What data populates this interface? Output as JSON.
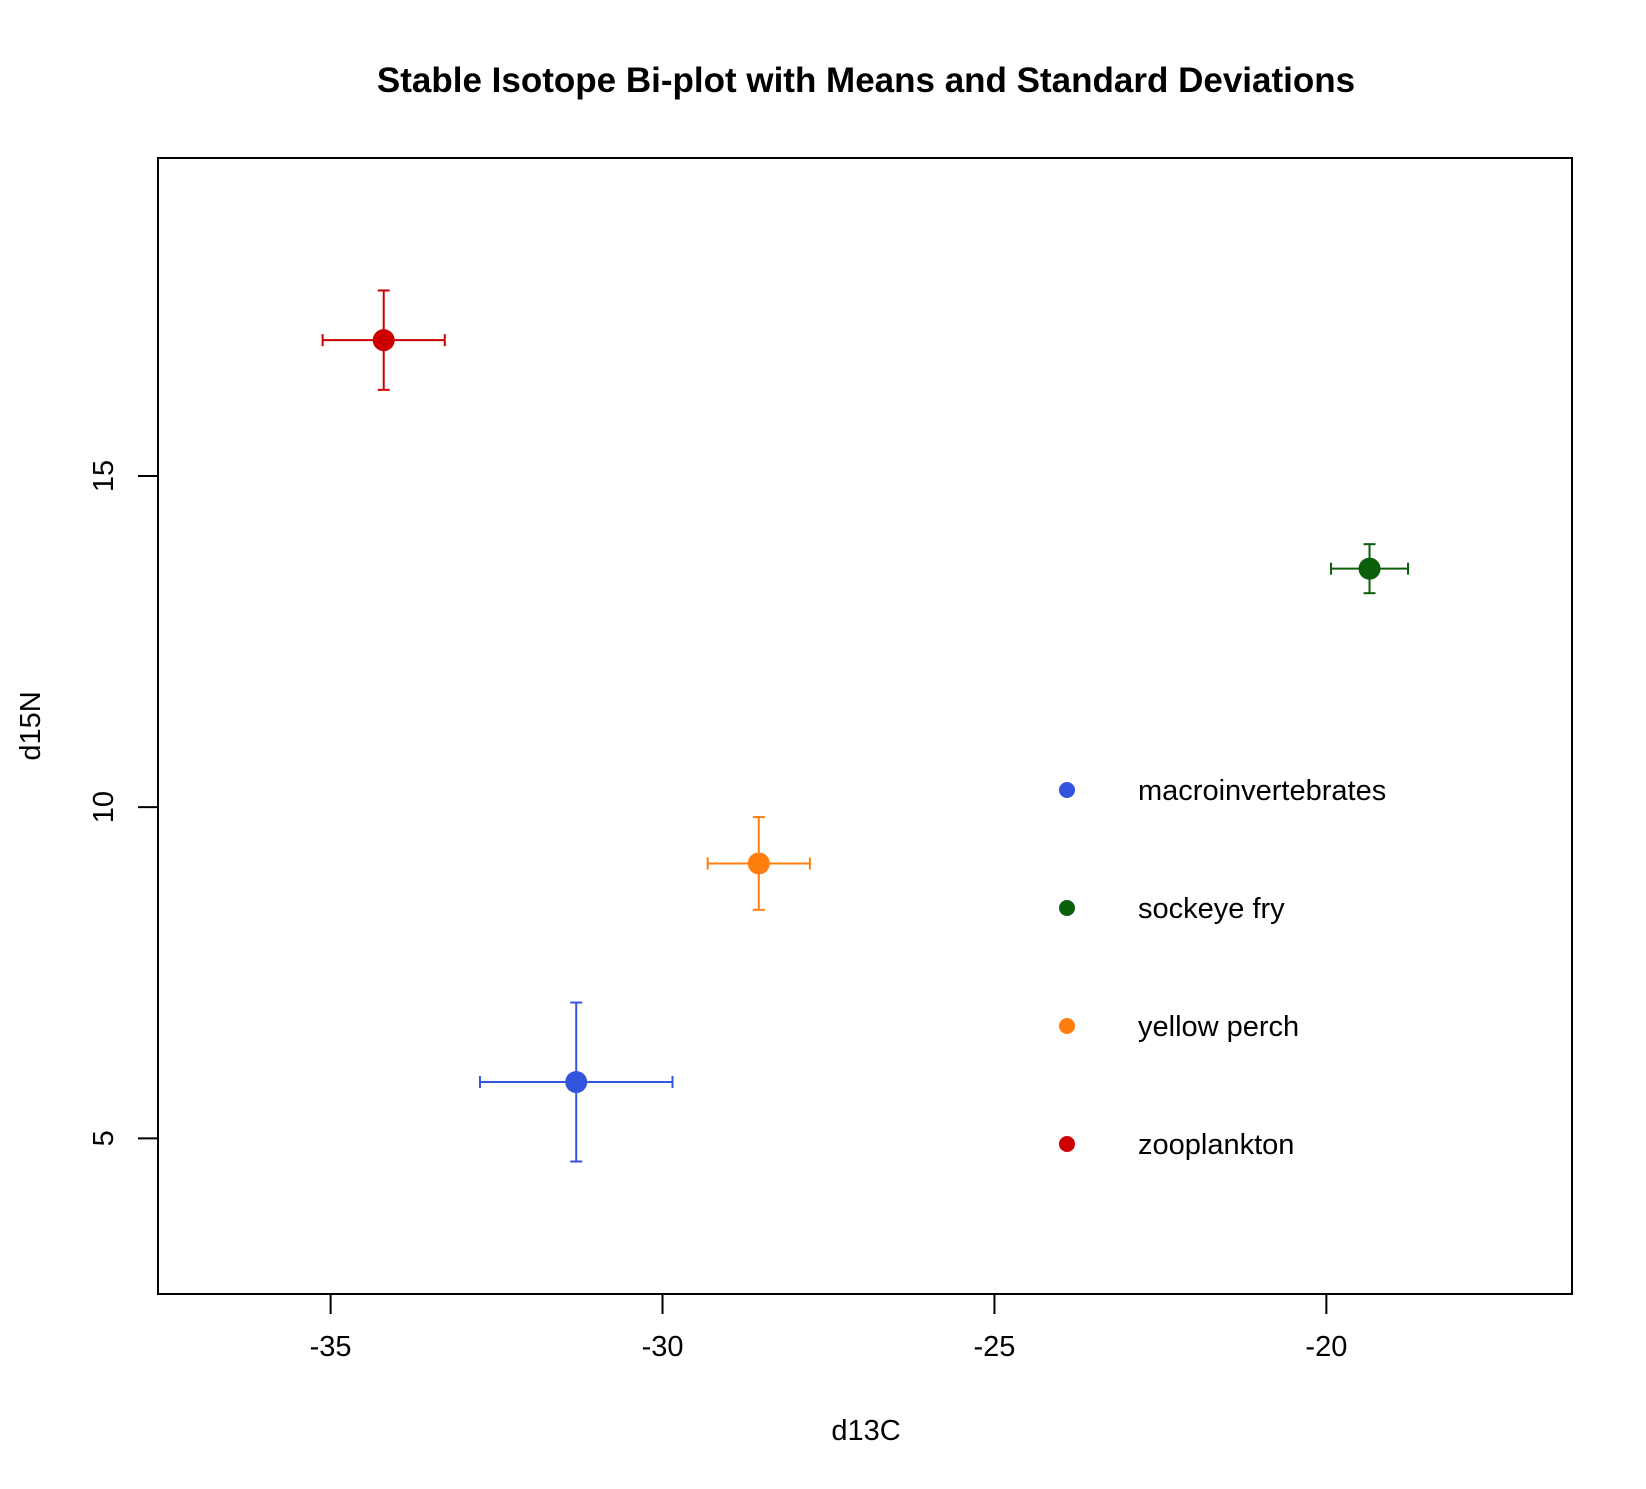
{
  "chart_data": {
    "type": "scatter",
    "title": "Stable Isotope Bi-plot with Means and Standard Deviations",
    "xlabel": "d13C",
    "ylabel": "d15N",
    "xlim": [
      -37.6,
      -16.3
    ],
    "ylim": [
      2.65,
      19.8
    ],
    "x_ticks": [
      -35,
      -30,
      -25,
      -20
    ],
    "x_tick_labels": [
      "-35",
      "-30",
      "-25",
      "-20"
    ],
    "y_ticks": [
      5,
      10,
      15
    ],
    "y_tick_labels": [
      "5",
      "10",
      "15"
    ],
    "grid": false,
    "legend_position": "right",
    "series": [
      {
        "name": "macroinvertebrates",
        "color": "#3355dd",
        "x": -31.3,
        "y": 5.85,
        "x_sd": 1.45,
        "y_sd": 1.2
      },
      {
        "name": "sockeye fry",
        "color": "#0b5e0b",
        "x": -19.35,
        "y": 13.6,
        "x_sd": 0.58,
        "y_sd": 0.37
      },
      {
        "name": "yellow perch",
        "color": "#ff7f0e",
        "x": -28.55,
        "y": 9.15,
        "x_sd": 0.77,
        "y_sd": 0.7
      },
      {
        "name": "zooplankton",
        "color": "#cc0000",
        "x": -34.2,
        "y": 17.05,
        "x_sd": 0.92,
        "y_sd": 0.75
      }
    ]
  }
}
